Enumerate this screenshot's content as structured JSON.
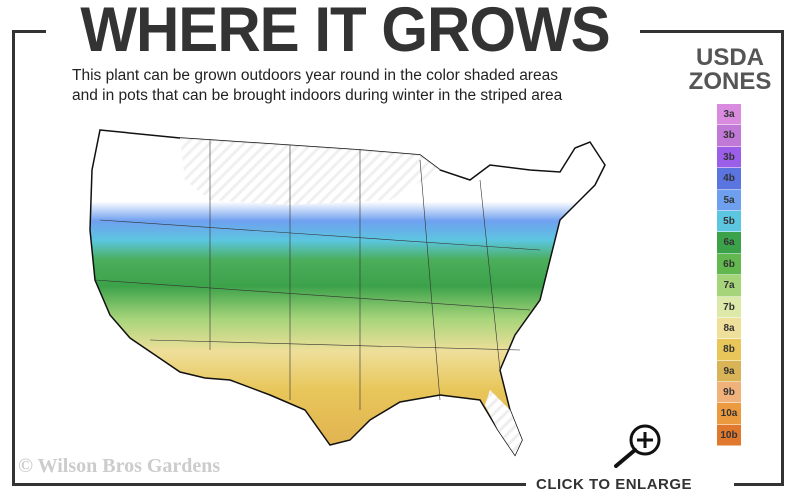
{
  "header": {
    "title": "WHERE IT GROWS",
    "subtitle_line1": "This plant can be grown outdoors year round in the color shaded areas",
    "subtitle_line2": "and in pots that can be brought indoors during winter in the striped area"
  },
  "legend": {
    "title_line1": "USDA",
    "title_line2": "ZONES",
    "zones": [
      {
        "label": "3a",
        "color": "#d98be0"
      },
      {
        "label": "3b",
        "color": "#c079d6"
      },
      {
        "label": "3b",
        "color": "#9a5ee8"
      },
      {
        "label": "4b",
        "color": "#5a74e0"
      },
      {
        "label": "5a",
        "color": "#6fa0f0"
      },
      {
        "label": "5b",
        "color": "#5cc6e0"
      },
      {
        "label": "6a",
        "color": "#3ca24a"
      },
      {
        "label": "6b",
        "color": "#62b84e"
      },
      {
        "label": "7a",
        "color": "#a6d47a"
      },
      {
        "label": "7b",
        "color": "#dde9a8"
      },
      {
        "label": "8a",
        "color": "#eedf9a"
      },
      {
        "label": "8b",
        "color": "#e8c65a"
      },
      {
        "label": "9a",
        "color": "#d9b457"
      },
      {
        "label": "9b",
        "color": "#f0b27a"
      },
      {
        "label": "10a",
        "color": "#ec9a40"
      },
      {
        "label": "10b",
        "color": "#e0782e"
      }
    ]
  },
  "footer": {
    "copyright": "© Wilson Bros Gardens",
    "enlarge_label": "CLICK TO ENLARGE"
  },
  "icons": {
    "enlarge": "magnifier-plus-icon"
  }
}
